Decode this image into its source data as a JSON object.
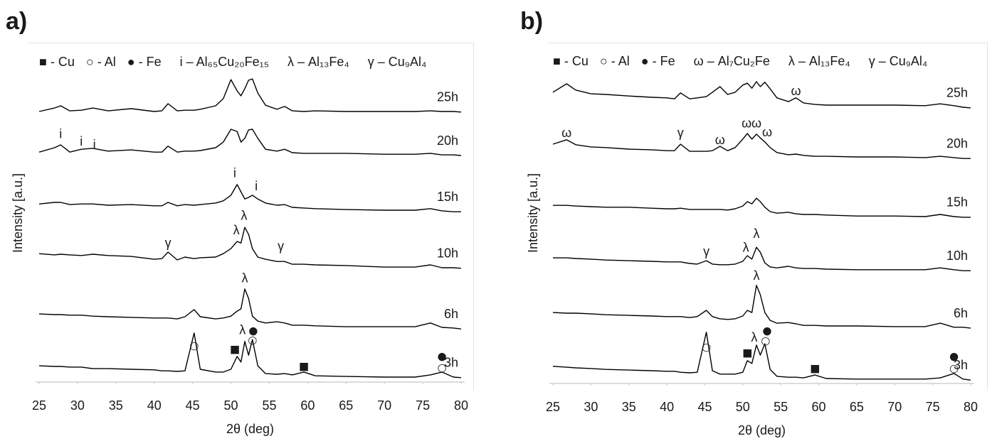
{
  "chart_data": [
    {
      "type": "line",
      "panel_label": "a)",
      "xlabel": "2θ (deg)",
      "ylabel": "Intensity [a.u.]",
      "legend": [
        "■ - Cu",
        "○ - Al",
        "● - Fe",
        "i – Al₆₅Cu₂₀Fe₁₅",
        "λ – Al₁₃Fe₄",
        "γ – Cu₉Al₄"
      ],
      "xlim": [
        25,
        80
      ],
      "xticks": [
        25,
        30,
        35,
        40,
        45,
        50,
        55,
        60,
        65,
        70,
        75,
        80
      ],
      "ylim": [
        0,
        100
      ],
      "x": [
        25,
        27,
        27.8,
        29,
        30.5,
        32,
        34,
        37,
        40,
        41,
        41.8,
        43,
        44,
        45.2,
        46,
        48,
        49,
        50,
        50.8,
        51.3,
        51.8,
        52.3,
        52.8,
        53.5,
        54.5,
        56,
        57,
        58,
        59.5,
        61,
        65,
        70,
        74,
        76,
        77.5,
        79,
        80
      ],
      "series": [
        {
          "name": "25h",
          "color": "#000000",
          "values": [
            86.6,
            87.7,
            88.4,
            86.8,
            87,
            87.7,
            86.8,
            87.5,
            86.6,
            86.8,
            89.1,
            86.8,
            87,
            87,
            87.3,
            88.4,
            90.7,
            96.8,
            93.2,
            91.6,
            93.9,
            96.6,
            97,
            92.5,
            88.6,
            87.3,
            88.2,
            86.8,
            86.6,
            86.8,
            86.6,
            86.6,
            86.6,
            86.8,
            86.6,
            86.6,
            86.4
          ]
        },
        {
          "name": "20h",
          "color": "#000000",
          "values": [
            73.6,
            75,
            75.9,
            73.6,
            74.5,
            74.8,
            73.9,
            74.3,
            73.6,
            73.6,
            75.5,
            73.6,
            73.9,
            73.9,
            74.1,
            75,
            76.8,
            80.9,
            80.2,
            76.8,
            78,
            80.7,
            80.9,
            78,
            74.5,
            73.9,
            74.5,
            73.4,
            73.2,
            73.2,
            73.2,
            72.9,
            72.9,
            73.2,
            72.7,
            72.7,
            72.5
          ]
        },
        {
          "name": "15h",
          "color": "#000000",
          "values": [
            57,
            57.5,
            57.5,
            56.8,
            57,
            57,
            56.6,
            56.8,
            56.4,
            56.4,
            57.5,
            56.4,
            56.8,
            56.6,
            56.8,
            57.3,
            58,
            59.8,
            63.2,
            60.9,
            58.6,
            59.1,
            59.8,
            58.6,
            57.3,
            56.6,
            56.8,
            55.9,
            55.7,
            55.5,
            55.2,
            55,
            55,
            55.5,
            54.8,
            54.5,
            54.5
          ]
        },
        {
          "name": "10h",
          "color": "#000000",
          "values": [
            41.1,
            40.7,
            40.9,
            40.7,
            40.5,
            40.9,
            40.5,
            40.2,
            39.3,
            39.5,
            41.6,
            39.1,
            40,
            39.5,
            39.8,
            40,
            41.1,
            42.7,
            45,
            44.5,
            49.5,
            47.3,
            42.7,
            40,
            39.3,
            38.6,
            38.6,
            37.7,
            37.7,
            37.5,
            37.3,
            36.8,
            36.8,
            37.5,
            36.6,
            36.6,
            36.4
          ]
        },
        {
          "name": "6h",
          "color": "#000000",
          "values": [
            21.8,
            21.6,
            21.6,
            21.4,
            21.4,
            21.1,
            20.9,
            20.7,
            20.5,
            20.5,
            20.5,
            20.2,
            20.9,
            23.2,
            20.9,
            20.2,
            20.5,
            21.1,
            22.7,
            23.4,
            29.8,
            26.8,
            21.1,
            19.5,
            18.9,
            19.3,
            18.9,
            18.2,
            18.2,
            18,
            17.7,
            17.7,
            17.7,
            18.9,
            17.5,
            17.3,
            17
          ]
        },
        {
          "name": "3h",
          "color": "#000000",
          "values": [
            5.2,
            5,
            5,
            4.8,
            4.8,
            4.3,
            4.3,
            4.1,
            3.9,
            3.6,
            3.6,
            3.4,
            3.6,
            15.7,
            4.1,
            3.2,
            3.2,
            4.1,
            8.2,
            6.4,
            13,
            8.6,
            13.6,
            5.2,
            2.7,
            2.5,
            2.7,
            2.3,
            3.2,
            2,
            1.8,
            1.6,
            1.6,
            2.3,
            3.2,
            1.6,
            1.4
          ]
        }
      ],
      "annotations": [
        {
          "text": "i",
          "x": 27.8,
          "y": 79.1
        },
        {
          "text": "i",
          "x": 30.5,
          "y": 76.8
        },
        {
          "text": "i",
          "x": 32.2,
          "y": 75.7
        },
        {
          "text": "i",
          "x": 50.5,
          "y": 66.6
        },
        {
          "text": "i",
          "x": 53.3,
          "y": 62.5
        },
        {
          "text": "γ",
          "x": 41.8,
          "y": 44.3
        },
        {
          "text": "λ",
          "x": 50.7,
          "y": 48.4
        },
        {
          "text": "λ",
          "x": 51.7,
          "y": 53
        },
        {
          "text": "γ",
          "x": 56.5,
          "y": 43.2
        },
        {
          "text": "λ",
          "x": 51.8,
          "y": 33
        },
        {
          "text": "○",
          "x": 45.2,
          "y": 11.6
        },
        {
          "text": "■",
          "x": 50.5,
          "y": 10.5
        },
        {
          "text": "λ",
          "x": 51.5,
          "y": 16.4
        },
        {
          "text": "●",
          "x": 52.9,
          "y": 16.4
        },
        {
          "text": "○",
          "x": 52.8,
          "y": 13.4
        },
        {
          "text": "■",
          "x": 59.5,
          "y": 5
        },
        {
          "text": "●",
          "x": 77.5,
          "y": 8.2
        },
        {
          "text": "○",
          "x": 77.5,
          "y": 4.5
        }
      ]
    },
    {
      "type": "line",
      "panel_label": "b)",
      "xlabel": "2θ (deg)",
      "ylabel": "Intensity [a.u.]",
      "legend": [
        "■ - Cu",
        "○ - Al",
        "● - Fe",
        "ω – Al₇Cu₂Fe",
        "λ – Al₁₃Fe₄",
        "γ – Cu₉Al₄"
      ],
      "xlim": [
        25,
        80
      ],
      "xticks": [
        25,
        30,
        35,
        40,
        45,
        50,
        55,
        60,
        65,
        70,
        75,
        80
      ],
      "ylim": [
        0,
        100
      ],
      "x": [
        25,
        26.8,
        28,
        30,
        32,
        35,
        38,
        40,
        41,
        41.8,
        43,
        44,
        45.2,
        46,
        47,
        48,
        49,
        50,
        50.6,
        51.2,
        51.8,
        52.3,
        52.9,
        53.6,
        54.5,
        56,
        57,
        58,
        59.5,
        61,
        65,
        70,
        74,
        76,
        77.8,
        79,
        80
      ],
      "series": [
        {
          "name": "25h",
          "color": "#000000",
          "values": [
            93.2,
            95.9,
            93.9,
            92.7,
            92.5,
            92,
            91.6,
            91.4,
            91.1,
            93,
            91.1,
            91.4,
            91.8,
            93.2,
            95,
            92.5,
            93.2,
            95.5,
            96.1,
            94.5,
            96.6,
            95,
            96.4,
            94.3,
            91.4,
            90.2,
            91.4,
            89.8,
            89.3,
            89.1,
            89.1,
            89.1,
            88.9,
            89.5,
            88.9,
            88.4,
            88.2
          ]
        },
        {
          "name": "20h",
          "color": "#000000",
          "values": [
            76.6,
            78,
            76.4,
            75.7,
            75.5,
            75,
            74.8,
            74.5,
            74.5,
            76.6,
            74.3,
            74.3,
            74.3,
            74.5,
            75.9,
            74.5,
            75.5,
            78.2,
            80,
            78.2,
            79.8,
            78.6,
            77.3,
            75.5,
            73.9,
            73.2,
            73.4,
            73,
            72.7,
            72.7,
            72.5,
            72.5,
            72.3,
            72.7,
            72.3,
            72,
            72
          ]
        },
        {
          "name": "15h",
          "color": "#000000",
          "values": [
            57,
            57,
            56.8,
            56.6,
            56.4,
            56.4,
            56.1,
            55.9,
            55.9,
            56.1,
            55.7,
            55.7,
            55.7,
            55.7,
            55.7,
            55.5,
            55.9,
            56.8,
            58.2,
            57.5,
            59.3,
            58.2,
            56.4,
            55,
            54.5,
            54.8,
            54.3,
            54.1,
            54.1,
            53.9,
            53.6,
            53.6,
            53.4,
            54.1,
            53.4,
            53.2,
            53.2
          ]
        },
        {
          "name": "10h",
          "color": "#000000",
          "values": [
            40.2,
            40.2,
            40,
            39.8,
            39.5,
            39.3,
            39.1,
            38.9,
            38.9,
            38.9,
            38.4,
            38.2,
            39.3,
            38.2,
            38,
            38,
            38.2,
            39.1,
            40.9,
            39.8,
            43.6,
            42,
            38.6,
            37.3,
            37,
            37.5,
            37,
            36.8,
            36.8,
            36.6,
            36.4,
            36.4,
            36.4,
            37,
            36.4,
            36.1,
            36.1
          ]
        },
        {
          "name": "6h",
          "color": "#000000",
          "values": [
            22.7,
            22.5,
            22.5,
            22.3,
            22,
            21.8,
            21.6,
            21.4,
            21.4,
            21.4,
            21.1,
            21.4,
            23.4,
            21.4,
            20.7,
            20.5,
            20.7,
            21.6,
            23.4,
            22.7,
            31.4,
            28.4,
            22.7,
            20.2,
            19.3,
            19.5,
            19.1,
            18.6,
            18.6,
            18.4,
            18.4,
            18.2,
            18.2,
            19.3,
            18,
            18,
            17.7
          ]
        },
        {
          "name": "3h",
          "color": "#000000",
          "values": [
            5.5,
            5.2,
            5,
            4.8,
            4.5,
            4.3,
            4.1,
            3.9,
            3.9,
            3.6,
            3.4,
            3.6,
            16.4,
            4.1,
            3,
            3,
            3,
            3.6,
            7.3,
            6.4,
            12.3,
            9.1,
            12.7,
            4.5,
            2.3,
            2,
            2,
            1.8,
            2.7,
            1.6,
            1.4,
            1.4,
            1.4,
            1.8,
            3.2,
            1.4,
            1.1
          ]
        }
      ],
      "annotations": [
        {
          "text": "ω",
          "x": 57,
          "y": 93.4
        },
        {
          "text": "ω",
          "x": 26.8,
          "y": 80
        },
        {
          "text": "γ",
          "x": 41.8,
          "y": 80
        },
        {
          "text": "ω",
          "x": 47,
          "y": 77.7
        },
        {
          "text": "ω",
          "x": 50.5,
          "y": 83
        },
        {
          "text": "ω",
          "x": 51.8,
          "y": 83
        },
        {
          "text": "ω",
          "x": 53.2,
          "y": 80.2
        },
        {
          "text": "γ",
          "x": 45.2,
          "y": 42
        },
        {
          "text": "λ",
          "x": 50.4,
          "y": 43.2
        },
        {
          "text": "λ",
          "x": 51.8,
          "y": 47.7
        },
        {
          "text": "λ",
          "x": 51.8,
          "y": 34.3
        },
        {
          "text": "○",
          "x": 45.2,
          "y": 11.6
        },
        {
          "text": "■",
          "x": 50.6,
          "y": 9.8
        },
        {
          "text": "λ",
          "x": 51.5,
          "y": 14.5
        },
        {
          "text": "●",
          "x": 53.2,
          "y": 16.8
        },
        {
          "text": "○",
          "x": 53,
          "y": 13.6
        },
        {
          "text": "■",
          "x": 59.5,
          "y": 4.8
        },
        {
          "text": "●",
          "x": 77.8,
          "y": 8.6
        },
        {
          "text": "○",
          "x": 77.8,
          "y": 4.8
        }
      ]
    }
  ]
}
